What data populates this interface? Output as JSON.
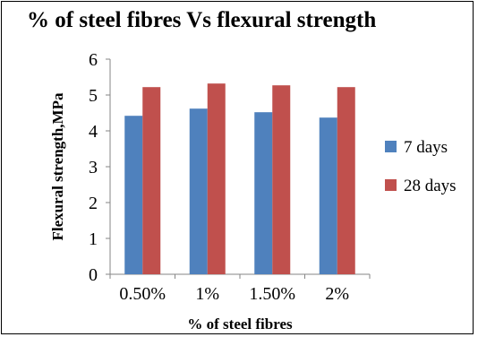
{
  "chart_data": {
    "type": "bar",
    "title": "% of steel fibres Vs flexural  strength",
    "xlabel": "% of steel fibres",
    "ylabel": "Flexural strength,MPa",
    "categories": [
      "0.50%",
      "1%",
      "1.50%",
      "2%"
    ],
    "series": [
      {
        "name": "7 days",
        "values": [
          4.42,
          4.62,
          4.52,
          4.37
        ],
        "color": "#4f81bd"
      },
      {
        "name": "28 days",
        "values": [
          5.22,
          5.32,
          5.27,
          5.22
        ],
        "color": "#c0504d"
      }
    ],
    "ylim": [
      0,
      6
    ],
    "yticks": [
      "0",
      "1",
      "2",
      "3",
      "4",
      "5",
      "6"
    ],
    "grid": false,
    "legend": "right"
  }
}
